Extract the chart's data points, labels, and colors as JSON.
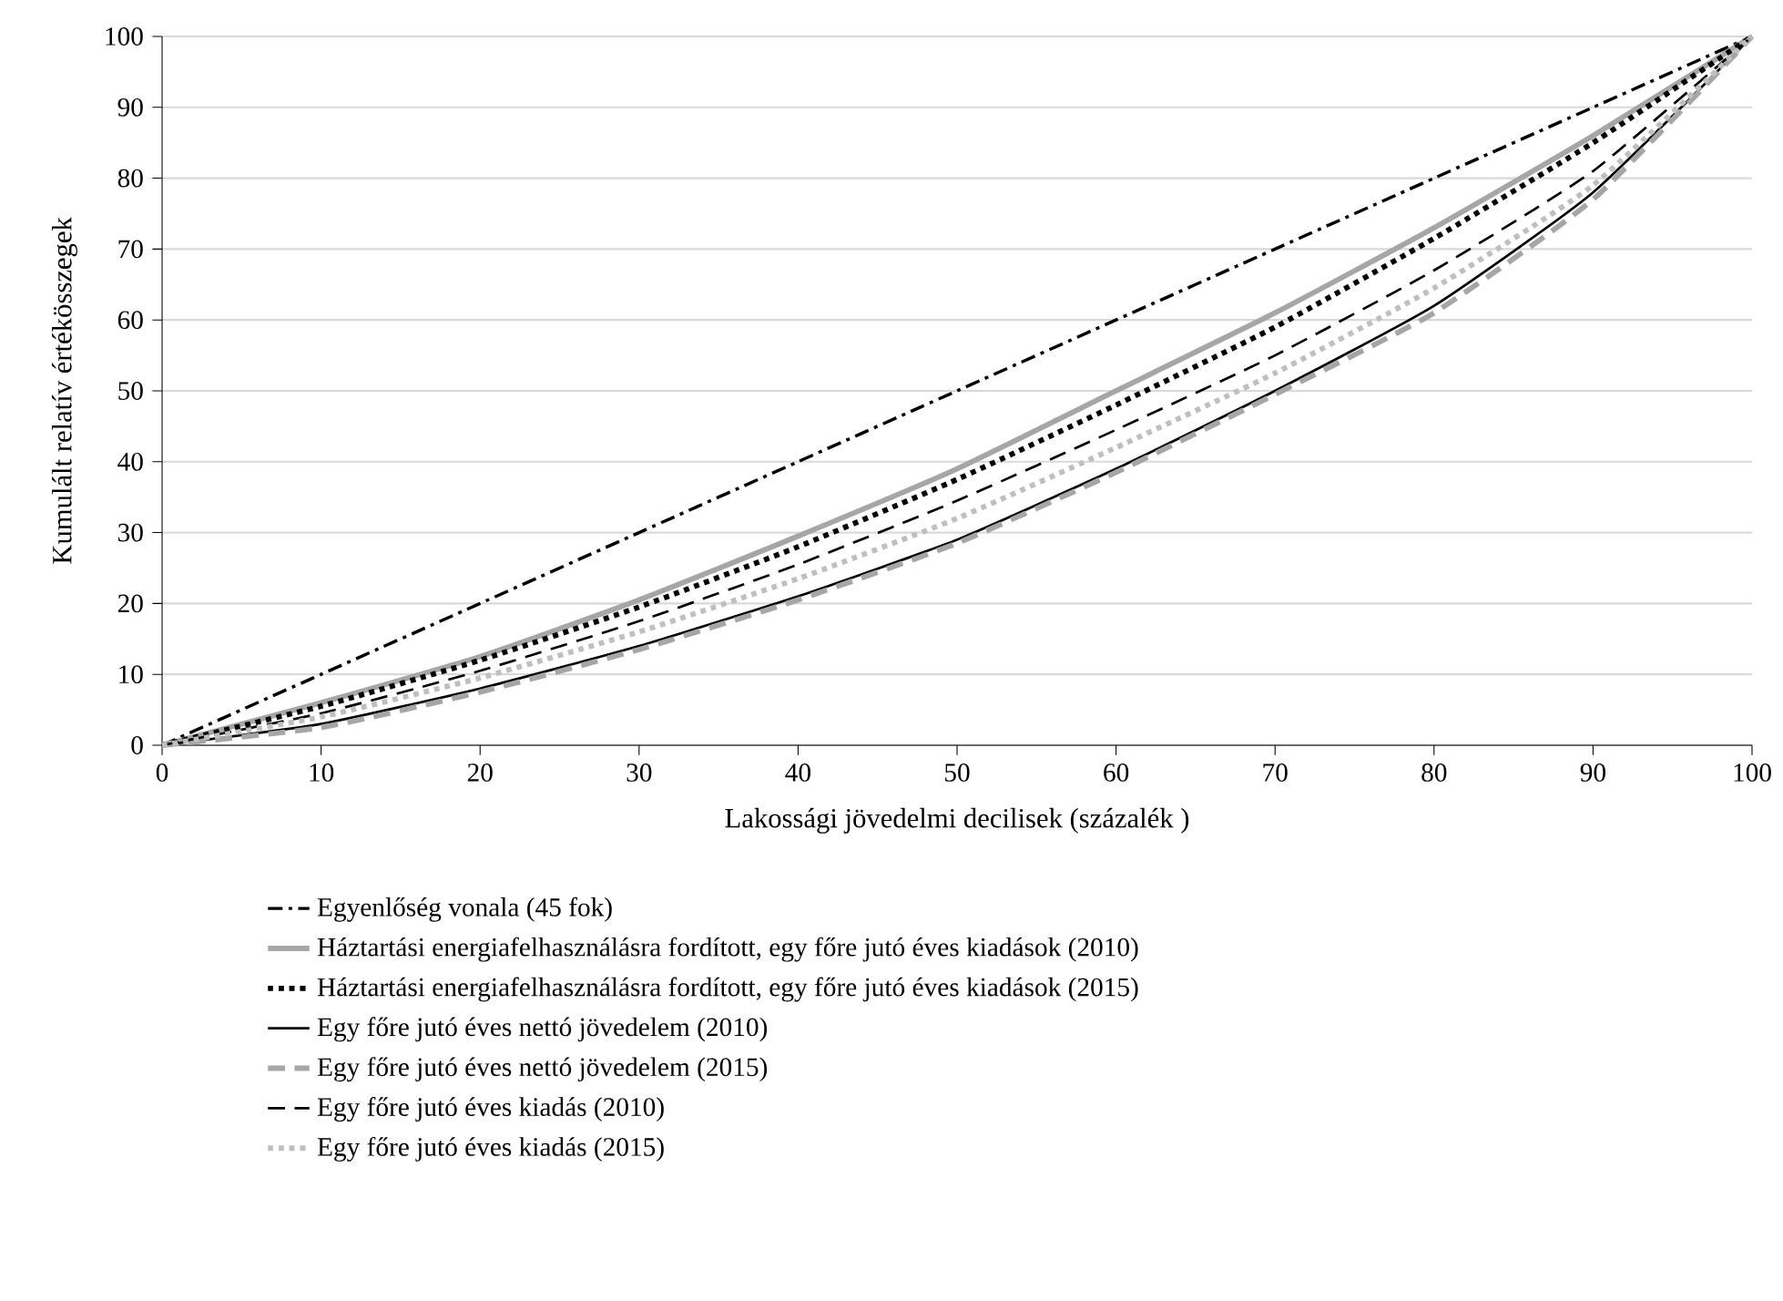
{
  "chart_data": {
    "type": "line",
    "xlabel": "Lakossági jövedelmi decilisek (százalék )",
    "ylabel": "Kumulált relatív értékösszegek",
    "x": [
      0,
      10,
      20,
      30,
      40,
      50,
      60,
      70,
      80,
      90,
      100
    ],
    "series": [
      {
        "name": "Egyenlőség vonala (45 fok)",
        "color": "#000000",
        "line_style": "dashdot",
        "values": [
          0,
          10,
          20,
          30,
          40,
          50,
          60,
          70,
          80,
          90,
          100
        ]
      },
      {
        "name": "Háztartási energiafelhasználásra fordított, egy főre jutó éves kiadások (2010)",
        "color": "#a6a6a6",
        "line_style": "solid",
        "values": [
          0,
          6,
          12.5,
          20.5,
          29.5,
          39,
          50,
          61,
          73,
          86,
          100
        ]
      },
      {
        "name": "Háztartási energiafelhasználásra fordított, egy főre jutó éves kiadások (2015)",
        "color": "#000000",
        "line_style": "dotted",
        "values": [
          0,
          5.5,
          12,
          19.5,
          28,
          37.5,
          48,
          59,
          71.5,
          85,
          100
        ]
      },
      {
        "name": "Egy főre jutó éves nettó jövedelem (2010)",
        "color": "#000000",
        "line_style": "solid",
        "values": [
          0,
          3,
          8,
          14,
          21,
          29,
          39,
          50,
          62,
          78,
          100
        ]
      },
      {
        "name": "Egy főre jutó éves nettó jövedelem (2015)",
        "color": "#a6a6a6",
        "line_style": "dashed",
        "values": [
          0,
          2.5,
          7.5,
          13.5,
          20.5,
          28.5,
          38.5,
          49.5,
          61,
          77,
          100
        ]
      },
      {
        "name": "Egy főre jutó éves kiadás (2010)",
        "color": "#000000",
        "line_style": "dashed",
        "values": [
          0,
          4.5,
          10.5,
          17.5,
          25.5,
          34.5,
          44.5,
          55,
          67,
          81,
          100
        ]
      },
      {
        "name": "Egy főre jutó éves kiadás (2015)",
        "color": "#bfbfbf",
        "line_style": "dotted",
        "values": [
          0,
          4,
          9.5,
          16,
          23.5,
          32,
          42,
          52.5,
          64.5,
          79,
          100
        ]
      }
    ],
    "xlim": [
      0,
      100
    ],
    "ylim": [
      0,
      100
    ],
    "xticks": [
      0,
      10,
      20,
      30,
      40,
      50,
      60,
      70,
      80,
      90,
      100
    ],
    "yticks": [
      0,
      10,
      20,
      30,
      40,
      50,
      60,
      70,
      80,
      90,
      100
    ],
    "grid": "y",
    "legend": "bottom",
    "marker": "none"
  }
}
